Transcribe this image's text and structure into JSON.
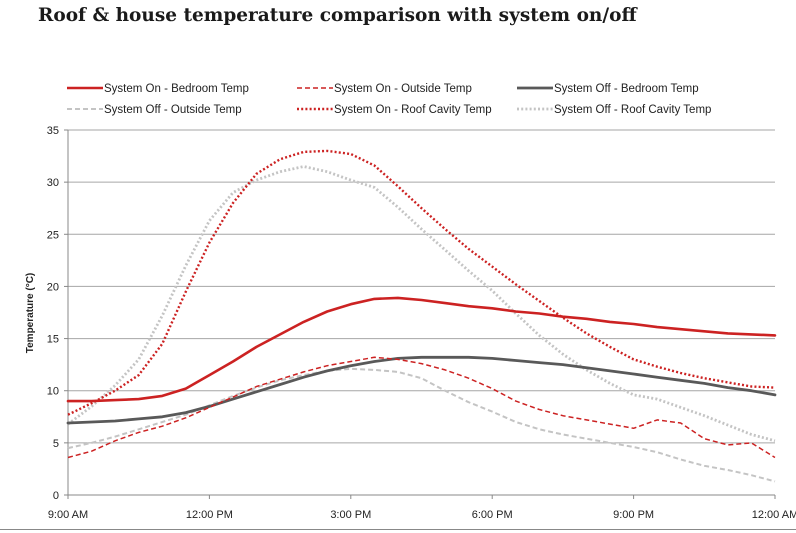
{
  "chart_data": {
    "type": "line",
    "title": "Roof & house temperature comparison with system on/off",
    "ylabel": "Temperature (°C)",
    "xlabel": "",
    "ylim": [
      0,
      35
    ],
    "yticks": [
      0,
      5,
      10,
      15,
      20,
      25,
      30,
      35
    ],
    "xlim": [
      0,
      15
    ],
    "xticks": [
      0,
      3,
      6,
      9,
      12,
      15
    ],
    "xticklabels": [
      "9:00 AM",
      "12:00 PM",
      "3:00 PM",
      "6:00 PM",
      "9:00 PM",
      "12:00 AM"
    ],
    "grid": "horizontal",
    "legend_position": "top",
    "series": [
      {
        "name": "System On - Bedroom Temp",
        "color": "#cc2222",
        "style": "solid",
        "width": 2.6,
        "x": [
          0,
          0.5,
          1,
          1.5,
          2,
          2.5,
          3,
          3.5,
          4,
          4.5,
          5,
          5.5,
          6,
          6.5,
          7,
          7.5,
          8,
          8.5,
          9,
          9.5,
          10,
          10.5,
          11,
          11.5,
          12,
          12.5,
          13,
          13.5,
          14,
          14.5,
          15
        ],
        "y": [
          9,
          9,
          9.1,
          9.2,
          9.5,
          10.2,
          11.5,
          12.8,
          14.2,
          15.4,
          16.6,
          17.6,
          18.3,
          18.8,
          18.9,
          18.7,
          18.4,
          18.1,
          17.9,
          17.6,
          17.4,
          17.1,
          16.9,
          16.6,
          16.4,
          16.1,
          15.9,
          15.7,
          15.5,
          15.4,
          15.3
        ]
      },
      {
        "name": "System On - Outside Temp",
        "color": "#cc2222",
        "style": "dashed",
        "width": 1.5,
        "x": [
          0,
          0.5,
          1,
          1.5,
          2,
          2.5,
          3,
          3.5,
          4,
          4.5,
          5,
          5.5,
          6,
          6.5,
          7,
          7.5,
          8,
          8.5,
          9,
          9.5,
          10,
          10.5,
          11,
          11.5,
          12,
          12.5,
          13,
          13.5,
          14,
          14.5,
          15
        ],
        "y": [
          3.6,
          4.2,
          5.2,
          6,
          6.6,
          7.4,
          8.4,
          9.4,
          10.4,
          11.1,
          11.8,
          12.4,
          12.8,
          13.2,
          13,
          12.6,
          12,
          11.2,
          10.2,
          9,
          8.2,
          7.6,
          7.2,
          6.8,
          6.4,
          7.2,
          6.9,
          5.4,
          4.8,
          5,
          3.6
        ]
      },
      {
        "name": "System Off - Bedroom Temp",
        "color": "#595959",
        "style": "solid",
        "width": 2.8,
        "x": [
          0,
          0.5,
          1,
          1.5,
          2,
          2.5,
          3,
          3.5,
          4,
          4.5,
          5,
          5.5,
          6,
          6.5,
          7,
          7.5,
          8,
          8.5,
          9,
          9.5,
          10,
          10.5,
          11,
          11.5,
          12,
          12.5,
          13,
          13.5,
          14,
          14.5,
          15
        ],
        "y": [
          6.9,
          7,
          7.1,
          7.3,
          7.5,
          7.9,
          8.5,
          9.2,
          9.9,
          10.6,
          11.3,
          11.9,
          12.4,
          12.8,
          13.1,
          13.2,
          13.2,
          13.2,
          13.1,
          12.9,
          12.7,
          12.5,
          12.2,
          11.9,
          11.6,
          11.3,
          11,
          10.7,
          10.3,
          10,
          9.6
        ]
      },
      {
        "name": "System Off - Outside Temp",
        "color": "#c4c4c4",
        "style": "dashed",
        "width": 2,
        "x": [
          0,
          0.5,
          1,
          1.5,
          2,
          2.5,
          3,
          3.5,
          4,
          4.5,
          5,
          5.5,
          6,
          6.5,
          7,
          7.5,
          8,
          8.5,
          9,
          9.5,
          10,
          10.5,
          11,
          11.5,
          12,
          12.5,
          13,
          13.5,
          14,
          14.5,
          15
        ],
        "y": [
          4.5,
          5,
          5.6,
          6.3,
          7,
          7.7,
          8.6,
          9.5,
          10.3,
          11,
          11.5,
          11.9,
          12.1,
          12,
          11.8,
          11.2,
          10,
          8.9,
          8,
          7,
          6.3,
          5.8,
          5.4,
          5,
          4.6,
          4.1,
          3.4,
          2.8,
          2.4,
          1.9,
          1.3
        ]
      },
      {
        "name": "System On - Roof Cavity Temp",
        "color": "#cc2222",
        "style": "dotted",
        "width": 2.4,
        "x": [
          0,
          0.5,
          1,
          1.5,
          2,
          2.5,
          3,
          3.5,
          4,
          4.5,
          5,
          5.5,
          6,
          6.5,
          7,
          7.5,
          8,
          8.5,
          9,
          9.5,
          10,
          10.5,
          11,
          11.5,
          12,
          12.5,
          13,
          13.5,
          14,
          14.5,
          15
        ],
        "y": [
          7.7,
          8.8,
          10,
          11.5,
          14.5,
          19.5,
          24.2,
          28,
          30.8,
          32.2,
          32.9,
          33,
          32.7,
          31.6,
          29.6,
          27.5,
          25.5,
          23.6,
          21.9,
          20.2,
          18.6,
          17,
          15.5,
          14.2,
          13,
          12.3,
          11.7,
          11.2,
          10.8,
          10.4,
          10.3
        ]
      },
      {
        "name": "System Off - Roof Cavity Temp",
        "color": "#c4c4c4",
        "style": "dotted",
        "width": 2.8,
        "x": [
          0,
          0.5,
          1,
          1.5,
          2,
          2.5,
          3,
          3.5,
          4,
          4.5,
          5,
          5.5,
          6,
          6.5,
          7,
          7.5,
          8,
          8.5,
          9,
          9.5,
          10,
          10.5,
          11,
          11.5,
          12,
          12.5,
          13,
          13.5,
          14,
          14.5,
          15
        ],
        "y": [
          6.8,
          8.5,
          10.5,
          13,
          17.2,
          22,
          26.3,
          29,
          30.2,
          31,
          31.5,
          31,
          30.2,
          29.5,
          27.6,
          25.5,
          23.5,
          21.5,
          19.6,
          17.4,
          15.3,
          13.5,
          12,
          10.7,
          9.6,
          9.2,
          8.4,
          7.6,
          6.7,
          5.8,
          5.2
        ]
      }
    ]
  }
}
